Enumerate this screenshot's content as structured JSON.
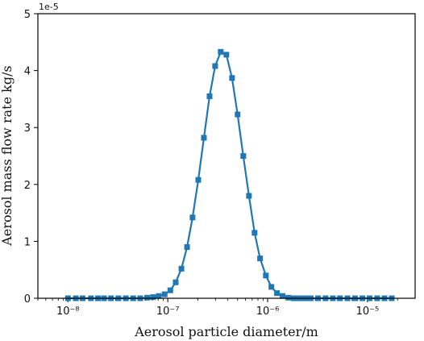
{
  "chart_data": {
    "type": "line",
    "xlabel": "Aerosol particle diameter/m",
    "ylabel": "Aerosol mass flow rate kg/s",
    "y_offset_label": "1e-5",
    "x_scale": "log",
    "xlim": [
      5e-09,
      3e-05
    ],
    "ylim": [
      0,
      5
    ],
    "x_ticks": [
      1e-08,
      1e-07,
      1e-06,
      1e-05
    ],
    "x_tick_labels": [
      "10⁻⁸",
      "10⁻⁷",
      "10⁻⁶",
      "10⁻⁵"
    ],
    "y_ticks": [
      0,
      1,
      2,
      3,
      4,
      5
    ],
    "y_tick_labels": [
      "0",
      "1",
      "2",
      "3",
      "4",
      "5"
    ],
    "grid": false,
    "marker": "square",
    "color": "#1f77b4",
    "series": [
      {
        "x": [
          1e-08,
          1.2e-08,
          1.4e-08,
          1.7e-08,
          2e-08,
          2.3e-08,
          2.7e-08,
          3.2e-08,
          3.8e-08,
          4.5e-08,
          5.3e-08,
          6.2e-08,
          7.1e-08,
          8.1e-08,
          9.3e-08,
          1.06e-07,
          1.2e-07,
          1.37e-07,
          1.56e-07,
          1.77e-07,
          2.02e-07,
          2.3e-07,
          2.62e-07,
          2.98e-07,
          3.39e-07,
          3.86e-07,
          4.4e-07,
          5e-07,
          5.7e-07,
          6.5e-07,
          7.4e-07,
          8.4e-07,
          9.6e-07,
          1.09e-06,
          1.24e-06,
          1.41e-06,
          1.61e-06,
          1.83e-06,
          2.08e-06,
          2.37e-06,
          2.7e-06,
          3.2e-06,
          3.8e-06,
          4.5e-06,
          5.3e-06,
          6.3e-06,
          7.5e-06,
          8.9e-06,
          1.05e-05,
          1.25e-05,
          1.48e-05,
          1.75e-05
        ],
        "values": [
          0,
          0,
          0,
          0,
          0,
          0,
          0,
          0,
          0,
          0,
          0,
          0.01,
          0.02,
          0.04,
          0.07,
          0.14,
          0.28,
          0.52,
          0.9,
          1.42,
          2.08,
          2.82,
          3.55,
          4.08,
          4.33,
          4.28,
          3.87,
          3.23,
          2.5,
          1.8,
          1.15,
          0.7,
          0.4,
          0.2,
          0.09,
          0.04,
          0.01,
          0,
          0,
          0,
          0,
          0,
          0,
          0,
          0,
          0,
          0,
          0,
          0,
          0,
          0,
          0
        ]
      }
    ]
  }
}
